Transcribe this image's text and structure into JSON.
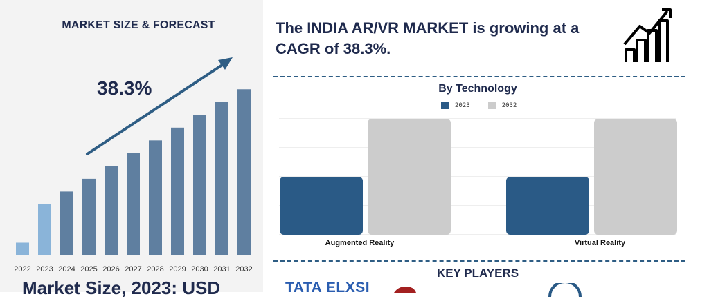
{
  "left": {
    "title": "MARKET SIZE & FORECAST",
    "cagr_label": "38.3%",
    "bottom_text": "Market Size, 2023: USD"
  },
  "headline": "The INDIA AR/VR MARKET is growing at a CAGR of 38.3%.",
  "tech": {
    "title": "By Technology",
    "legend": [
      {
        "label": "2023",
        "color": "#2a5a86"
      },
      {
        "label": "2032",
        "color": "#cccccc"
      }
    ]
  },
  "key_players": {
    "title": "KEY PLAYERS",
    "logos": [
      "TATA ELXSI"
    ]
  },
  "colors": {
    "dark_blue": "#2a5a86",
    "light_grey": "#cccccc",
    "bar_main": "#5f7fa0",
    "bar_light": "#8ab4d9",
    "text_navy": "#1f2a4d"
  },
  "chart_data": [
    {
      "type": "bar",
      "title": "MARKET SIZE & FORECAST",
      "categories": [
        "2022",
        "2023",
        "2024",
        "2025",
        "2026",
        "2027",
        "2028",
        "2029",
        "2030",
        "2031",
        "2032"
      ],
      "values": [
        1,
        4,
        5,
        6,
        7,
        8,
        9,
        10,
        11,
        12,
        13
      ],
      "highlight": [
        "2022",
        "2023"
      ],
      "annotation": "38.3%",
      "ylim": [
        0,
        13.5
      ]
    },
    {
      "type": "bar",
      "title": "By Technology",
      "categories": [
        "Augmented Reality",
        "Virtual Reality"
      ],
      "series": [
        {
          "name": "2023",
          "values": [
            2,
            2
          ]
        },
        {
          "name": "2032",
          "values": [
            4,
            4
          ]
        }
      ],
      "ylim": [
        0,
        4
      ],
      "grid": true,
      "legend": "top-center"
    }
  ]
}
